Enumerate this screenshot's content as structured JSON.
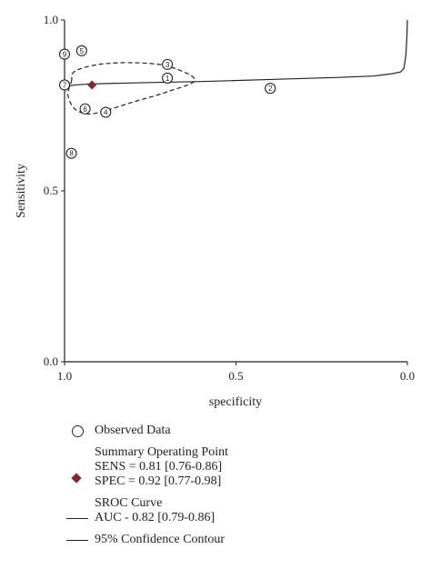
{
  "chart_data": {
    "type": "scatter",
    "xlabel": "specificity",
    "ylabel": "Sensitivity",
    "x_reversed": true,
    "xlim": [
      1.0,
      0.0
    ],
    "ylim": [
      0.0,
      1.0
    ],
    "x_ticks": [
      "1.0",
      "0.5",
      "0.0"
    ],
    "y_ticks": [
      "0.0",
      "0.5",
      "1.0"
    ],
    "grid": false,
    "legend_position": "bottom",
    "observed": [
      {
        "label": "1",
        "x": 0.7,
        "y": 0.83
      },
      {
        "label": "2",
        "x": 0.4,
        "y": 0.8
      },
      {
        "label": "3",
        "x": 0.7,
        "y": 0.87
      },
      {
        "label": "4",
        "x": 0.88,
        "y": 0.73
      },
      {
        "label": "5",
        "x": 0.95,
        "y": 0.91
      },
      {
        "label": "6",
        "x": 0.94,
        "y": 0.74
      },
      {
        "label": "7",
        "x": 1.0,
        "y": 0.81
      },
      {
        "label": "8",
        "x": 0.98,
        "y": 0.61
      },
      {
        "label": "9",
        "x": 1.0,
        "y": 0.9
      }
    ],
    "summary_point": {
      "x": 0.92,
      "y": 0.81
    },
    "sroc_curve": [
      [
        1.0,
        0.8
      ],
      [
        0.99,
        0.806
      ],
      [
        0.97,
        0.81
      ],
      [
        0.92,
        0.813
      ],
      [
        0.8,
        0.816
      ],
      [
        0.6,
        0.82
      ],
      [
        0.4,
        0.826
      ],
      [
        0.2,
        0.832
      ],
      [
        0.1,
        0.836
      ],
      [
        0.05,
        0.842
      ],
      [
        0.02,
        0.848
      ],
      [
        0.01,
        0.858
      ],
      [
        0.004,
        0.9
      ],
      [
        0.001,
        0.96
      ],
      [
        0.0,
        1.0
      ]
    ],
    "confidence_contour": [
      [
        0.98,
        0.82
      ],
      [
        0.97,
        0.85
      ],
      [
        0.9,
        0.87
      ],
      [
        0.8,
        0.875
      ],
      [
        0.7,
        0.865
      ],
      [
        0.62,
        0.825
      ],
      [
        0.7,
        0.79
      ],
      [
        0.8,
        0.76
      ],
      [
        0.88,
        0.735
      ],
      [
        0.93,
        0.725
      ],
      [
        0.97,
        0.74
      ],
      [
        0.99,
        0.78
      ],
      [
        0.98,
        0.82
      ]
    ],
    "colors": {
      "summary": "#8b2232",
      "line": "#222222"
    }
  },
  "legend": {
    "observed_label": "Observed Data",
    "summary_title": "Summary Operating Point",
    "sens_text": "SENS = 0.81 [0.76-0.86]",
    "spec_text": "SPEC = 0.92 [0.77-0.98]",
    "sroc_title": "SROC Curve",
    "auc_text": "AUC - 0.82 [0.79-0.86]",
    "contour_label": "95% Confidence Contour"
  }
}
